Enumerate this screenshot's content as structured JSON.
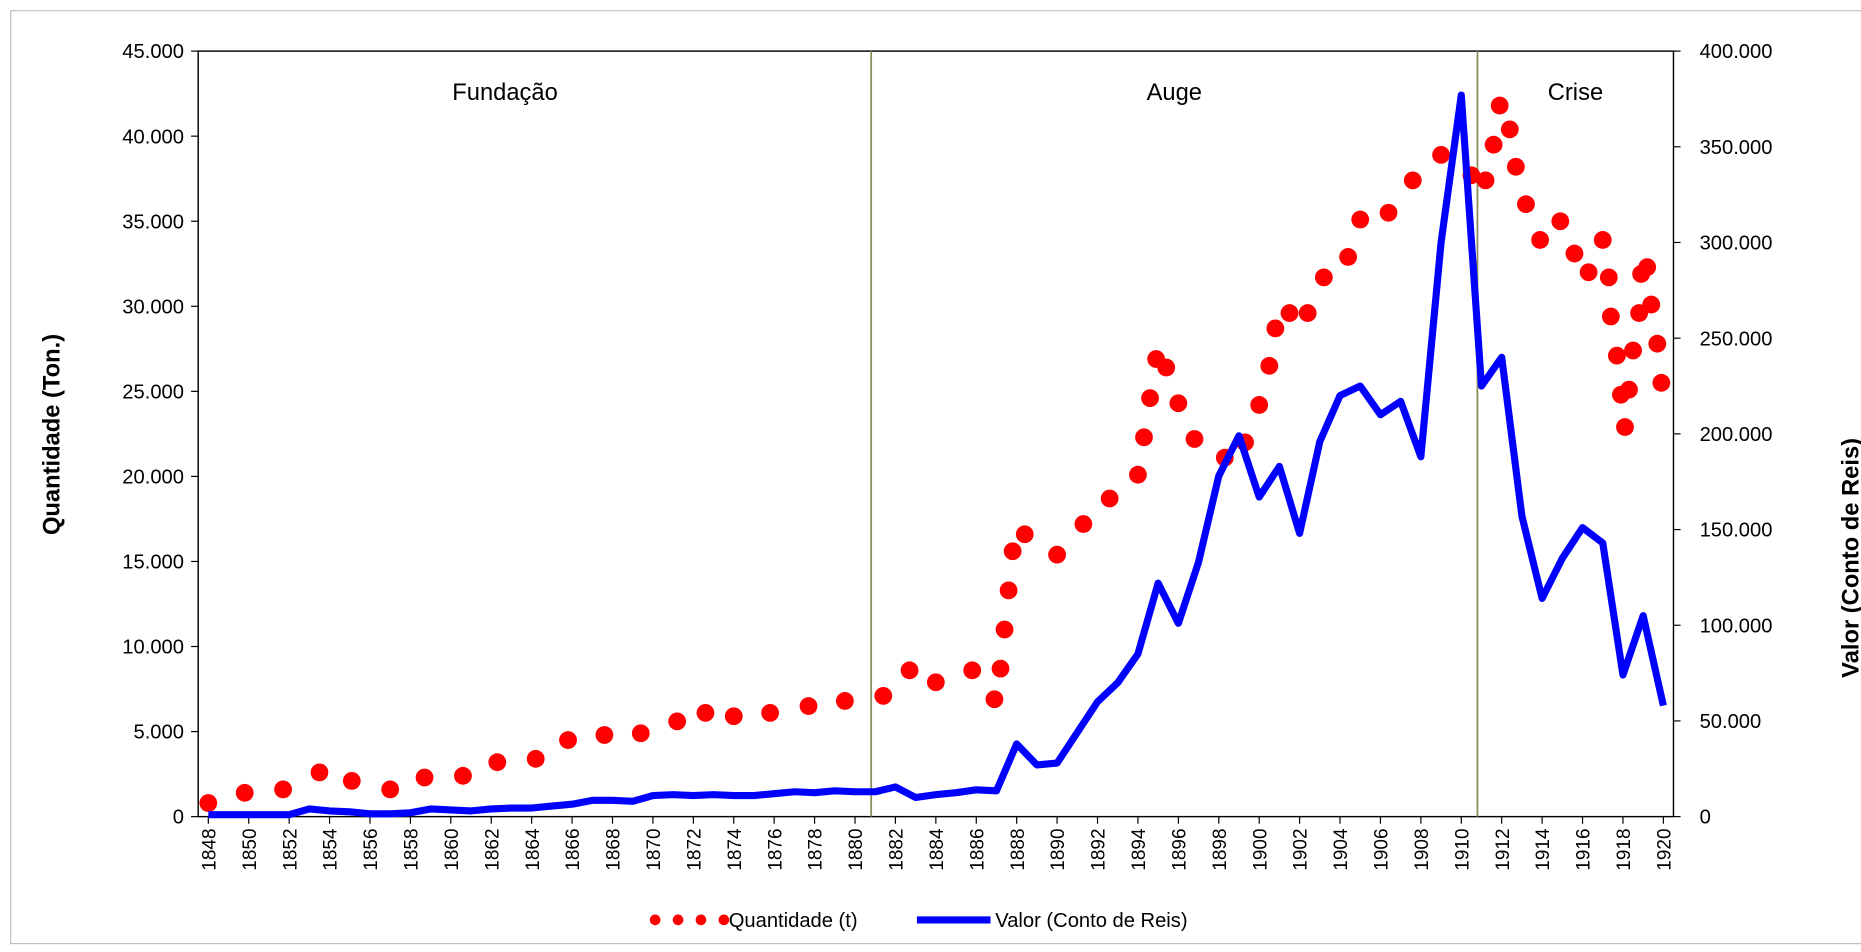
{
  "chart_data": {
    "type": "combo",
    "y_label": "Quantidade (Ton.)",
    "y2_label": "Valor  (Conto de Reis)",
    "annotations": [
      "Fundação",
      "Auge",
      "Crise"
    ],
    "vlines": [
      1880.8,
      1910.8
    ],
    "vline_color": "#8c8c5a",
    "xlim": [
      1847.5,
      1920.5
    ],
    "xticks": [
      1848,
      1850,
      1852,
      1854,
      1856,
      1858,
      1860,
      1862,
      1864,
      1866,
      1868,
      1870,
      1872,
      1874,
      1876,
      1878,
      1880,
      1882,
      1884,
      1886,
      1888,
      1890,
      1892,
      1894,
      1896,
      1898,
      1900,
      1902,
      1904,
      1906,
      1908,
      1910,
      1912,
      1914,
      1916,
      1918,
      1920
    ],
    "ylim": [
      0,
      45000
    ],
    "yticks": [
      0,
      {
        "value": 5000,
        "label": "5.000"
      },
      {
        "value": 10000,
        "label": "10.000"
      },
      {
        "value": 15000,
        "label": "15.000"
      },
      {
        "value": 20000,
        "label": "20.000"
      },
      {
        "value": 25000,
        "label": "25.000"
      },
      {
        "value": 30000,
        "label": "30.000"
      },
      {
        "value": 35000,
        "label": "35.000"
      },
      {
        "value": 40000,
        "label": "40.000"
      },
      {
        "value": 45000,
        "label": "45.000"
      }
    ],
    "y2lim": [
      0,
      400000
    ],
    "y2ticks": [
      0,
      {
        "value": 50000,
        "label": "50.000"
      },
      {
        "value": 100000,
        "label": "100.000"
      },
      {
        "value": 150000,
        "label": "150.000"
      },
      {
        "value": 200000,
        "label": "200.000"
      },
      {
        "value": 250000,
        "label": "250.000"
      },
      {
        "value": 300000,
        "label": "300.000"
      },
      {
        "value": 350000,
        "label": "350.000"
      },
      {
        "value": 400000,
        "label": "400.000"
      }
    ],
    "series": [
      {
        "name": "Quantidade (t)",
        "type": "scatter",
        "color": "#ff0000",
        "x": [
          1848,
          1849.8,
          1851.7,
          1853.5,
          1855.1,
          1857,
          1858.7,
          1860.6,
          1862.3,
          1864.2,
          1865.8,
          1867.6,
          1869.4,
          1871.2,
          1872.6,
          1874,
          1875.8,
          1877.7,
          1879.5,
          1881.4,
          1882.7,
          1884,
          1885.8,
          1886.9,
          1887.2,
          1887.4,
          1887.6,
          1887.8,
          1888.4,
          1890,
          1891.3,
          1892.6,
          1894,
          1894.3,
          1894.6,
          1894.9,
          1895.4,
          1896,
          1896.8,
          1898.3,
          1899.3,
          1900,
          1900.5,
          1900.8,
          1901.5,
          1902.4,
          1903.2,
          1904.4,
          1905,
          1906.4,
          1907.6,
          1909,
          1910.5,
          1911.2,
          1911.6,
          1911.9,
          1912.4,
          1912.7,
          1913.2,
          1913.9,
          1914.9,
          1915.6,
          1916.3,
          1917,
          1917.3,
          1917.4,
          1917.7,
          1917.9,
          1918.1,
          1918.3,
          1918.5,
          1918.8,
          1918.9,
          1919.2,
          1919.4,
          1919.7,
          1919.9
        ],
        "values": [
          800,
          1400,
          1600,
          2600,
          2100,
          1600,
          2300,
          2400,
          3200,
          3400,
          4500,
          4800,
          4900,
          5600,
          6100,
          5900,
          6100,
          6500,
          6800,
          7100,
          8600,
          7900,
          8600,
          6900,
          8700,
          11000,
          13300,
          15600,
          16600,
          15400,
          17200,
          18700,
          20100,
          22300,
          24600,
          26900,
          26400,
          24300,
          22200,
          21100,
          22000,
          24200,
          26500,
          28700,
          29600,
          29600,
          31700,
          32900,
          35100,
          35500,
          37400,
          38900,
          37700,
          37400,
          39500,
          41800,
          40400,
          38200,
          36000,
          33900,
          35000,
          33100,
          32000,
          33900,
          31700,
          29400,
          27100,
          24800,
          22900,
          25100,
          27400,
          29600,
          31900,
          32300,
          30100,
          27800,
          25500
        ]
      },
      {
        "name": "Valor (Conto de Reis)",
        "type": "line",
        "axis": "y2",
        "color": "#0000ff",
        "x": [
          1848,
          1849,
          1850,
          1851,
          1852,
          1853,
          1854,
          1855,
          1856,
          1857,
          1858,
          1859,
          1860,
          1861,
          1862,
          1863,
          1864,
          1865,
          1866,
          1867,
          1868,
          1869,
          1870,
          1871,
          1872,
          1873,
          1874,
          1875,
          1876,
          1877,
          1878,
          1879,
          1880,
          1881,
          1882,
          1883,
          1884,
          1885,
          1886,
          1887,
          1888,
          1889,
          1890,
          1891,
          1892,
          1893,
          1894,
          1895,
          1896,
          1897,
          1898,
          1899,
          1900,
          1901,
          1902,
          1903,
          1904,
          1905,
          1906,
          1907,
          1908,
          1909,
          1910,
          1911,
          1912,
          1913,
          1914,
          1915,
          1916,
          1917,
          1918,
          1919,
          1920
        ],
        "values": [
          1000,
          1000,
          1000,
          1000,
          1000,
          4000,
          3000,
          2500,
          1500,
          1500,
          2000,
          4000,
          3500,
          3000,
          4000,
          4500,
          4500,
          5500,
          6500,
          8500,
          8500,
          8000,
          11000,
          11500,
          11000,
          11500,
          11000,
          11000,
          12000,
          13000,
          12500,
          13500,
          13000,
          13000,
          15500,
          10000,
          11500,
          12500,
          14000,
          13500,
          38000,
          27000,
          28000,
          44000,
          60000,
          70000,
          85000,
          122000,
          101000,
          133000,
          178000,
          199000,
          167000,
          183000,
          148000,
          196000,
          220000,
          225000,
          210000,
          217000,
          188000,
          300000,
          377000,
          225000,
          240000,
          157000,
          114000,
          135000,
          151000,
          143000,
          74000,
          105000,
          58000
        ]
      }
    ]
  }
}
